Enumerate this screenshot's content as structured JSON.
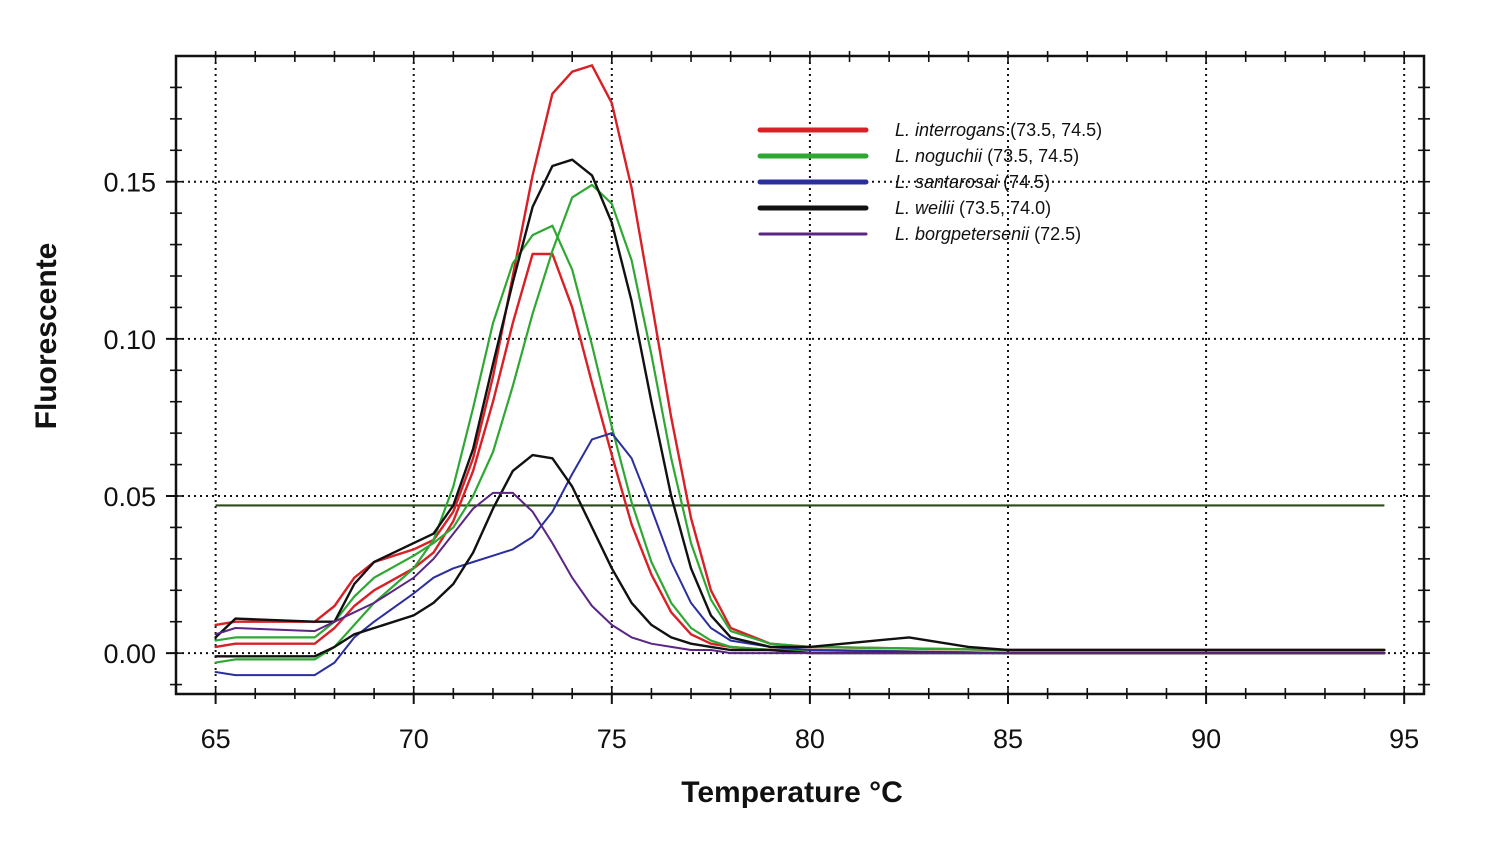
{
  "chart_data": {
    "type": "line",
    "xlabel": "Temperature °C",
    "ylabel": "Fluorescente",
    "xlim": [
      64,
      95.5
    ],
    "ylim": [
      -0.013,
      0.19
    ],
    "x_ticks": [
      "65",
      "70",
      "75",
      "80",
      "85",
      "90",
      "95"
    ],
    "y_ticks": [
      "0.00",
      "0.05",
      "0.10",
      "0.15"
    ],
    "grid": true,
    "legend_position": "top-right",
    "threshold": 0.047,
    "series": [
      {
        "name_italic": "L. interrogans",
        "name_rest": " (73.5, 74.5)",
        "color": "#d92027",
        "stroke": 2.4,
        "curves": [
          {
            "x": [
              65,
              65.5,
              67.5,
              68,
              68.5,
              69,
              70,
              70.5,
              71,
              71.5,
              72,
              72.5,
              73,
              73.5,
              74,
              74.5,
              75,
              75.5,
              76,
              76.5,
              77,
              77.5,
              78,
              79,
              80,
              85,
              90,
              94.5
            ],
            "y": [
              0.002,
              0.003,
              0.003,
              0.008,
              0.015,
              0.02,
              0.027,
              0.032,
              0.042,
              0.058,
              0.08,
              0.105,
              0.127,
              0.127,
              0.11,
              0.086,
              0.063,
              0.041,
              0.025,
              0.013,
              0.006,
              0.003,
              0.002,
              0.001,
              0.001,
              0,
              0,
              0
            ]
          },
          {
            "x": [
              65,
              65.5,
              67.5,
              68,
              68.5,
              69,
              70,
              70.5,
              71,
              71.5,
              72,
              72.5,
              73,
              73.5,
              74,
              74.5,
              75,
              75.5,
              76,
              76.5,
              77,
              77.5,
              78,
              79,
              80,
              85,
              90,
              94.5
            ],
            "y": [
              0.009,
              0.01,
              0.01,
              0.015,
              0.024,
              0.029,
              0.033,
              0.036,
              0.045,
              0.062,
              0.088,
              0.12,
              0.152,
              0.178,
              0.185,
              0.187,
              0.175,
              0.148,
              0.112,
              0.075,
              0.043,
              0.02,
              0.008,
              0.003,
              0.002,
              0.001,
              0.001,
              0.001
            ]
          }
        ]
      },
      {
        "name_italic": "L. noguchii",
        "name_rest": " (73.5, 74.5)",
        "color": "#2fa833",
        "stroke": 2.2,
        "curves": [
          {
            "x": [
              65,
              65.5,
              67.5,
              68,
              68.5,
              69,
              70,
              70.5,
              71,
              71.5,
              72,
              72.5,
              73,
              73.5,
              74,
              74.5,
              75,
              75.5,
              76,
              76.5,
              77,
              77.5,
              78,
              79,
              80,
              85,
              90,
              94.5
            ],
            "y": [
              -0.003,
              -0.002,
              -0.002,
              0.002,
              0.009,
              0.016,
              0.027,
              0.036,
              0.053,
              0.078,
              0.105,
              0.124,
              0.133,
              0.136,
              0.122,
              0.098,
              0.072,
              0.048,
              0.029,
              0.016,
              0.008,
              0.004,
              0.002,
              0.001,
              0.001,
              0,
              0,
              0
            ]
          },
          {
            "x": [
              65,
              65.5,
              67.5,
              68,
              68.5,
              69,
              70,
              70.5,
              71,
              71.5,
              72,
              72.5,
              73,
              73.5,
              74,
              74.5,
              75,
              75.5,
              76,
              76.5,
              77,
              77.5,
              78,
              79,
              80,
              85,
              90,
              94.5
            ],
            "y": [
              0.004,
              0.005,
              0.005,
              0.01,
              0.018,
              0.024,
              0.031,
              0.035,
              0.04,
              0.05,
              0.064,
              0.085,
              0.108,
              0.128,
              0.145,
              0.149,
              0.143,
              0.125,
              0.095,
              0.062,
              0.035,
              0.017,
              0.007,
              0.003,
              0.002,
              0.001,
              0.001,
              0.001
            ]
          }
        ]
      },
      {
        "name_italic": "L. santarosai",
        "name_rest": " (74.5)",
        "color": "#2b2f9e",
        "stroke": 2,
        "curves": [
          {
            "x": [
              65,
              65.5,
              67.5,
              68,
              68.5,
              69,
              70,
              70.5,
              71,
              71.5,
              72,
              72.5,
              73,
              73.5,
              74,
              74.5,
              75,
              75.5,
              76,
              76.5,
              77,
              77.5,
              78,
              79,
              80,
              85,
              90,
              94.5
            ],
            "y": [
              -0.006,
              -0.007,
              -0.007,
              -0.003,
              0.005,
              0.01,
              0.019,
              0.024,
              0.027,
              0.029,
              0.031,
              0.033,
              0.037,
              0.045,
              0.057,
              0.068,
              0.07,
              0.062,
              0.046,
              0.029,
              0.016,
              0.008,
              0.004,
              0.002,
              0.001,
              0,
              0,
              0
            ]
          }
        ]
      },
      {
        "name_italic": "L. weilii",
        "name_rest": " (73.5, 74.0)",
        "color": "#111111",
        "stroke": 2.4,
        "curves": [
          {
            "x": [
              65,
              65.5,
              67.5,
              68,
              68.5,
              69,
              70,
              70.5,
              71,
              71.5,
              72,
              72.5,
              73,
              73.5,
              74,
              74.5,
              75,
              75.5,
              76,
              76.5,
              77,
              77.5,
              78,
              79,
              80,
              82.5,
              84,
              85,
              90,
              94.5
            ],
            "y": [
              0.005,
              0.011,
              0.01,
              0.01,
              0.022,
              0.029,
              0.035,
              0.038,
              0.047,
              0.065,
              0.092,
              0.118,
              0.142,
              0.155,
              0.157,
              0.152,
              0.137,
              0.112,
              0.08,
              0.05,
              0.027,
              0.012,
              0.005,
              0.002,
              0.002,
              0.005,
              0.002,
              0.001,
              0.001,
              0.001
            ]
          },
          {
            "x": [
              65,
              65.5,
              67.5,
              68,
              68.5,
              69,
              70,
              70.5,
              71,
              71.5,
              72,
              72.5,
              73,
              73.5,
              74,
              74.5,
              75,
              75.5,
              76,
              76.5,
              77,
              77.5,
              78,
              79,
              80,
              85,
              90,
              94.5
            ],
            "y": [
              -0.001,
              -0.001,
              -0.001,
              0.002,
              0.006,
              0.008,
              0.012,
              0.016,
              0.022,
              0.032,
              0.046,
              0.058,
              0.063,
              0.062,
              0.053,
              0.04,
              0.027,
              0.016,
              0.009,
              0.005,
              0.003,
              0.002,
              0.001,
              0.001,
              0,
              0,
              0,
              0
            ]
          }
        ]
      },
      {
        "name_italic": "L. borgpetersenii",
        "name_rest": " (72.5)",
        "color": "#5b2583",
        "stroke": 2,
        "curves": [
          {
            "x": [
              65,
              65.5,
              67.5,
              68,
              68.5,
              69,
              70,
              70.5,
              71,
              71.5,
              72,
              72.5,
              73,
              73.5,
              74,
              74.5,
              75,
              75.5,
              76,
              76.5,
              77,
              77.5,
              78,
              79,
              80,
              85,
              90,
              94.5
            ],
            "y": [
              0.006,
              0.008,
              0.007,
              0.01,
              0.013,
              0.016,
              0.024,
              0.03,
              0.038,
              0.046,
              0.051,
              0.051,
              0.045,
              0.035,
              0.024,
              0.015,
              0.009,
              0.005,
              0.003,
              0.002,
              0.001,
              0.001,
              0,
              0,
              0,
              0,
              0,
              0
            ]
          }
        ]
      }
    ]
  }
}
